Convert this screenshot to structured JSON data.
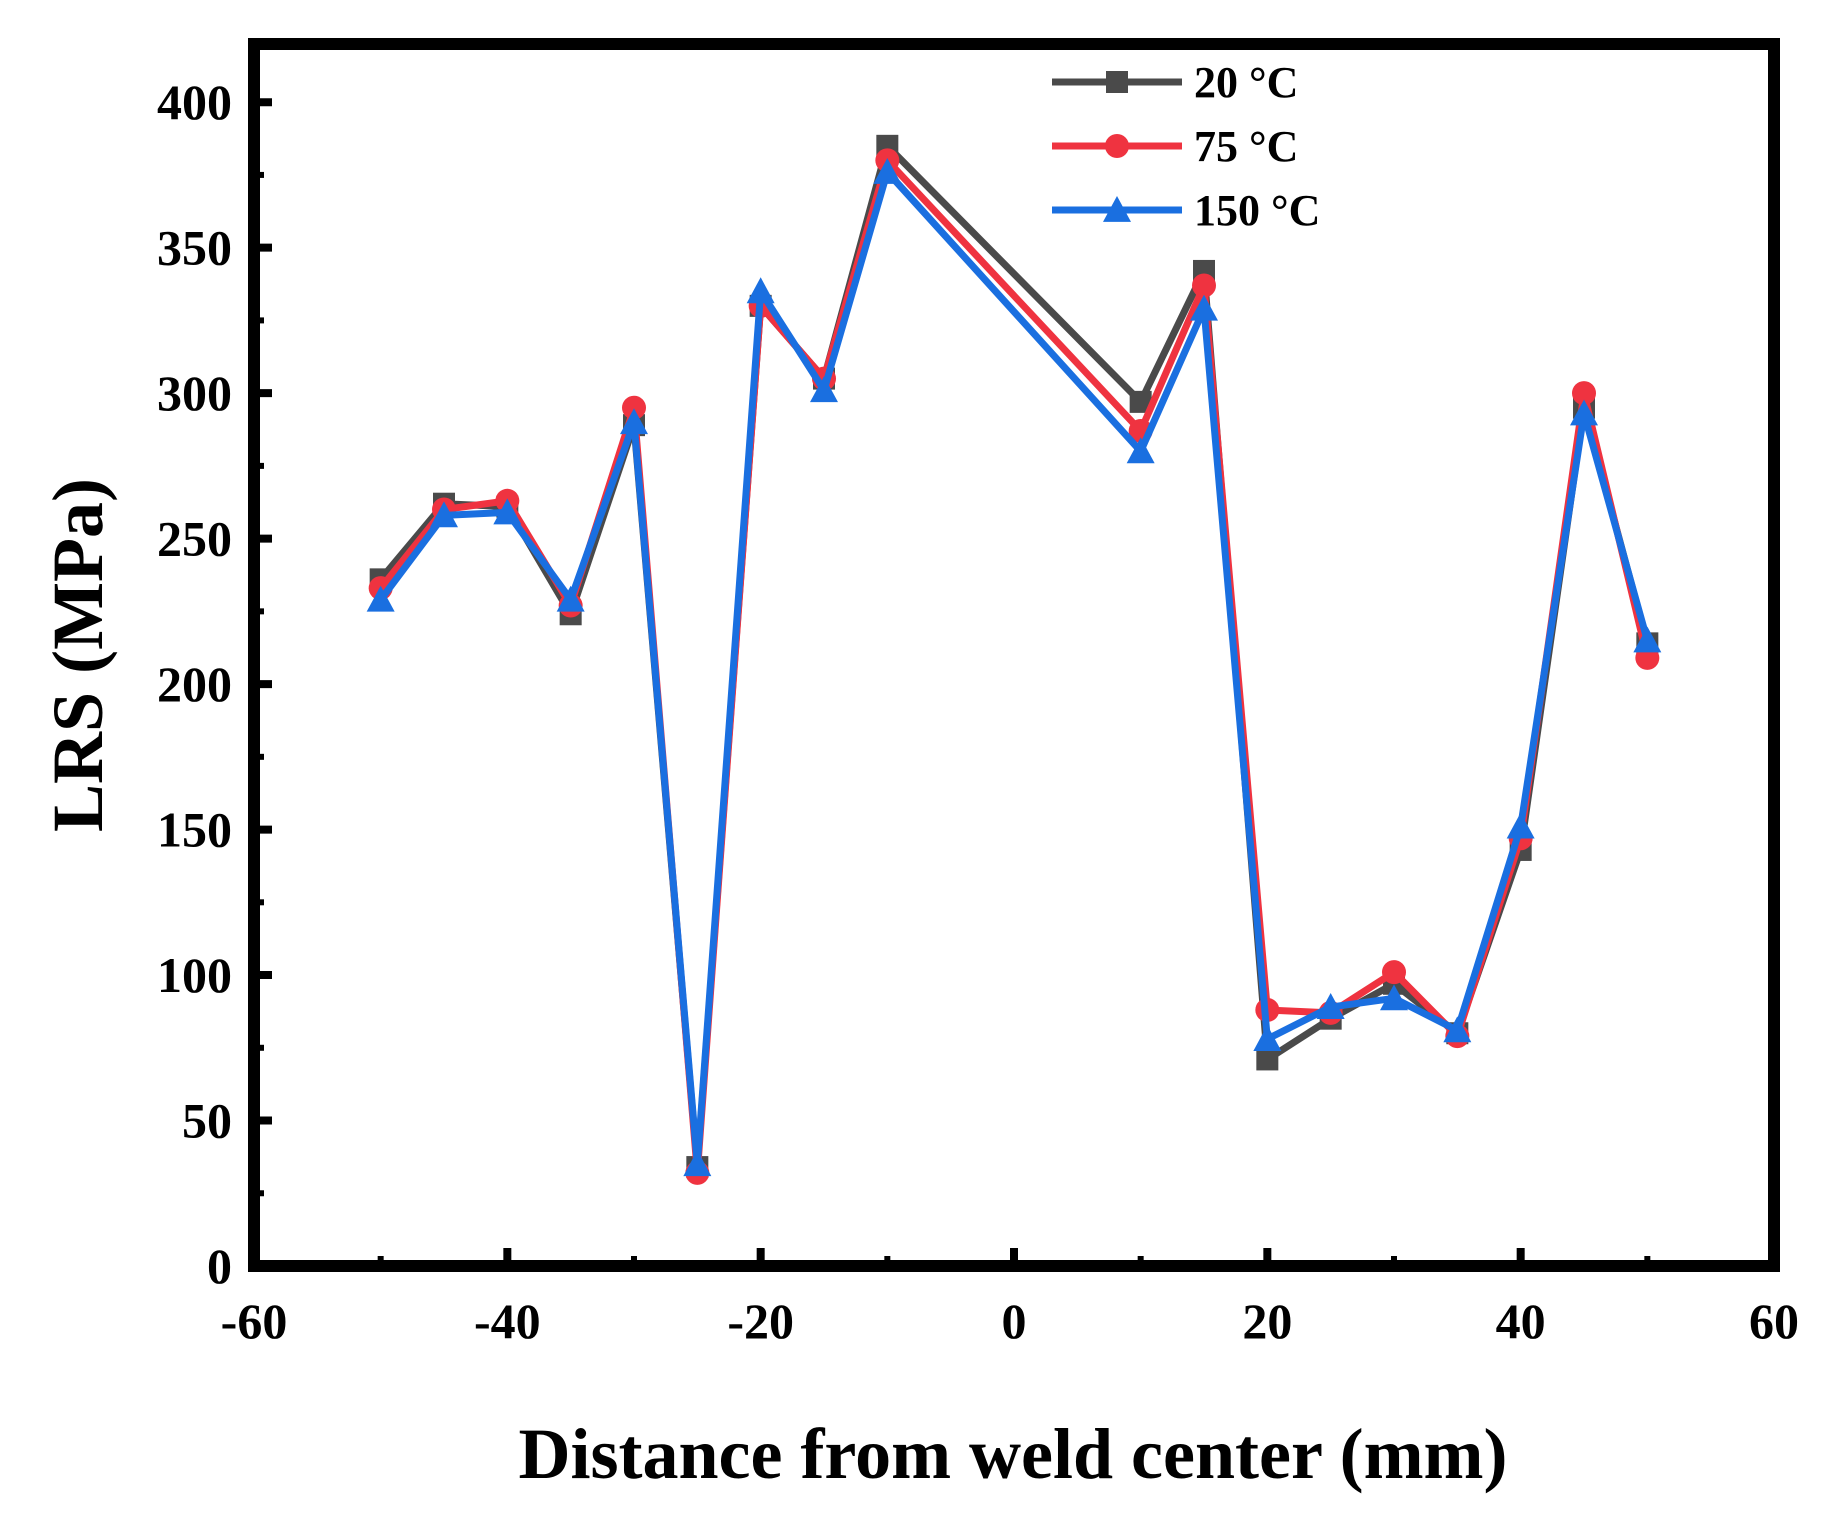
{
  "chart_data": {
    "type": "line",
    "title": "",
    "xlabel": "Distance from weld center (mm)",
    "ylabel": "LRS (MPa)",
    "xlim": [
      -60,
      60
    ],
    "ylim": [
      0,
      420
    ],
    "xticks": [
      -60,
      -40,
      -20,
      0,
      20,
      40,
      60
    ],
    "yticks": [
      0,
      50,
      100,
      150,
      200,
      250,
      300,
      350,
      400
    ],
    "x": [
      -50,
      -45,
      -40,
      -35,
      -30,
      -25,
      -20,
      -15,
      -10,
      10,
      15,
      20,
      25,
      30,
      35,
      40,
      45,
      50
    ],
    "series": [
      {
        "name": "20 °C",
        "color": "#4a4a4a",
        "marker": "square",
        "values": [
          236,
          262,
          261,
          224,
          289,
          34,
          330,
          305,
          385,
          297,
          342,
          71,
          85,
          97,
          80,
          143,
          295,
          214
        ]
      },
      {
        "name": "75 °C",
        "color": "#ef3340",
        "marker": "circle",
        "values": [
          233,
          260,
          263,
          227,
          295,
          32,
          330,
          305,
          380,
          287,
          337,
          88,
          87,
          101,
          79,
          147,
          300,
          209
        ]
      },
      {
        "name": "150 °C",
        "color": "#1a6fe0",
        "marker": "triangle",
        "values": [
          229,
          258,
          259,
          229,
          290,
          35,
          335,
          301,
          376,
          280,
          329,
          78,
          89,
          92,
          81,
          151,
          293,
          215
        ]
      }
    ],
    "legend": {
      "placement": "top-center"
    },
    "grid": false
  }
}
